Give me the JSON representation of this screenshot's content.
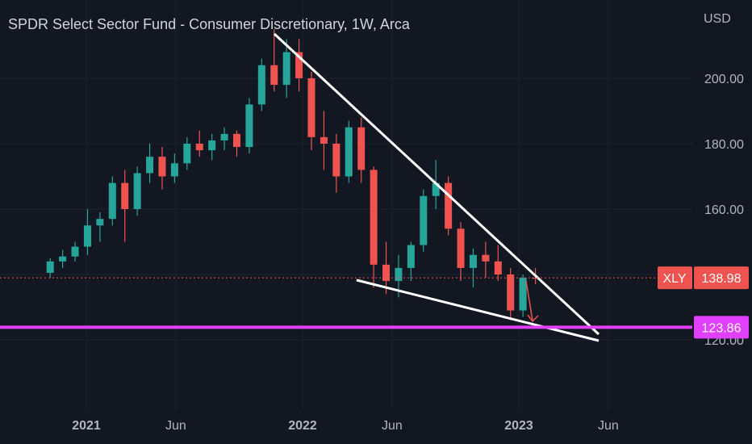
{
  "title": "SPDR Select Sector Fund - Consumer Discretionary, 1W, Arca",
  "colors": {
    "background": "#131722",
    "grid": "#1e222d",
    "up": "#26a69a",
    "down": "#ef5350",
    "trendline": "#ffffff",
    "support": "#e040fb",
    "price_label": "#ef5350",
    "axis_text": "#b2b5be"
  },
  "chart_data": {
    "type": "candlestick",
    "title": "SPDR Select Sector Fund - Consumer Discretionary, 1W, Arca",
    "currency": "USD",
    "y_ticks": [
      120,
      140,
      160,
      180,
      200
    ],
    "y_tick_labels": [
      "120.00",
      "140.00",
      "160.00",
      "180.00",
      "200.00"
    ],
    "x_labels": [
      "2021",
      "Jun",
      "2022",
      "Jun",
      "2023",
      "Jun"
    ],
    "grid": true,
    "symbol": "XLY",
    "last_price": 138.98,
    "last_price_label": "138.98",
    "support_level": 123.86,
    "support_label": "123.86",
    "series": [
      {
        "date": "2020-11-01",
        "open": 140.5,
        "high": 145.0,
        "low": 139.0,
        "close": 144.0
      },
      {
        "date": "2020-11-22",
        "open": 144.0,
        "high": 147.5,
        "low": 142.0,
        "close": 145.5
      },
      {
        "date": "2020-12-13",
        "open": 145.5,
        "high": 150.0,
        "low": 144.0,
        "close": 148.5
      },
      {
        "date": "2021-01-03",
        "open": 148.5,
        "high": 160.0,
        "low": 146.0,
        "close": 155.0
      },
      {
        "date": "2021-01-24",
        "open": 155.0,
        "high": 159.0,
        "low": 150.0,
        "close": 157.0
      },
      {
        "date": "2021-02-14",
        "open": 157.0,
        "high": 170.0,
        "low": 155.0,
        "close": 168.0
      },
      {
        "date": "2021-03-07",
        "open": 168.0,
        "high": 172.0,
        "low": 150.0,
        "close": 160.0
      },
      {
        "date": "2021-03-28",
        "open": 160.0,
        "high": 173.0,
        "low": 158.0,
        "close": 171.0
      },
      {
        "date": "2021-04-18",
        "open": 171.0,
        "high": 180.0,
        "low": 168.0,
        "close": 176.0
      },
      {
        "date": "2021-05-09",
        "open": 176.0,
        "high": 179.0,
        "low": 166.0,
        "close": 170.0
      },
      {
        "date": "2021-05-30",
        "open": 170.0,
        "high": 177.0,
        "low": 168.0,
        "close": 174.0
      },
      {
        "date": "2021-06-20",
        "open": 174.0,
        "high": 182.0,
        "low": 172.0,
        "close": 180.0
      },
      {
        "date": "2021-07-11",
        "open": 180.0,
        "high": 184.0,
        "low": 176.0,
        "close": 178.0
      },
      {
        "date": "2021-08-01",
        "open": 178.0,
        "high": 183.0,
        "low": 175.0,
        "close": 181.0
      },
      {
        "date": "2021-08-22",
        "open": 181.0,
        "high": 185.0,
        "low": 178.0,
        "close": 183.0
      },
      {
        "date": "2021-09-12",
        "open": 183.0,
        "high": 184.0,
        "low": 176.0,
        "close": 179.0
      },
      {
        "date": "2021-10-03",
        "open": 179.0,
        "high": 194.0,
        "low": 177.0,
        "close": 192.0
      },
      {
        "date": "2021-10-24",
        "open": 192.0,
        "high": 206.0,
        "low": 190.0,
        "close": 204.0
      },
      {
        "date": "2021-11-14",
        "open": 204.0,
        "high": 215.0,
        "low": 196.0,
        "close": 198.0
      },
      {
        "date": "2021-12-05",
        "open": 198.0,
        "high": 212.0,
        "low": 194.0,
        "close": 208.0
      },
      {
        "date": "2021-12-26",
        "open": 208.0,
        "high": 212.0,
        "low": 196.0,
        "close": 200.0
      },
      {
        "date": "2022-01-16",
        "open": 200.0,
        "high": 202.0,
        "low": 178.0,
        "close": 182.0
      },
      {
        "date": "2022-02-06",
        "open": 182.0,
        "high": 190.0,
        "low": 172.0,
        "close": 180.0
      },
      {
        "date": "2022-02-27",
        "open": 180.0,
        "high": 183.0,
        "low": 165.0,
        "close": 170.0
      },
      {
        "date": "2022-03-20",
        "open": 170.0,
        "high": 187.0,
        "low": 168.0,
        "close": 185.0
      },
      {
        "date": "2022-04-10",
        "open": 185.0,
        "high": 188.0,
        "low": 168.0,
        "close": 172.0
      },
      {
        "date": "2022-05-01",
        "open": 172.0,
        "high": 173.0,
        "low": 136.0,
        "close": 143.0
      },
      {
        "date": "2022-05-22",
        "open": 143.0,
        "high": 150.0,
        "low": 134.0,
        "close": 138.0
      },
      {
        "date": "2022-06-12",
        "open": 138.0,
        "high": 146.0,
        "low": 133.0,
        "close": 142.0
      },
      {
        "date": "2022-07-03",
        "open": 142.0,
        "high": 150.0,
        "low": 138.0,
        "close": 149.0
      },
      {
        "date": "2022-07-24",
        "open": 149.0,
        "high": 166.0,
        "low": 147.0,
        "close": 164.0
      },
      {
        "date": "2022-08-14",
        "open": 164.0,
        "high": 175.0,
        "low": 160.0,
        "close": 168.0
      },
      {
        "date": "2022-09-04",
        "open": 168.0,
        "high": 170.0,
        "low": 152.0,
        "close": 154.0
      },
      {
        "date": "2022-09-25",
        "open": 154.0,
        "high": 156.0,
        "low": 138.0,
        "close": 142.0
      },
      {
        "date": "2022-10-16",
        "open": 142.0,
        "high": 148.0,
        "low": 136.0,
        "close": 146.0
      },
      {
        "date": "2022-11-06",
        "open": 146.0,
        "high": 150.0,
        "low": 139.0,
        "close": 144.0
      },
      {
        "date": "2022-11-27",
        "open": 144.0,
        "high": 149.0,
        "low": 138.0,
        "close": 140.0
      },
      {
        "date": "2022-12-18",
        "open": 140.0,
        "high": 142.0,
        "low": 126.0,
        "close": 129.0
      },
      {
        "date": "2023-01-08",
        "open": 129.0,
        "high": 140.0,
        "low": 127.0,
        "close": 139.0
      },
      {
        "date": "2023-01-29",
        "open": 139.0,
        "high": 142.0,
        "low": 137.0,
        "close": 138.98
      }
    ]
  }
}
